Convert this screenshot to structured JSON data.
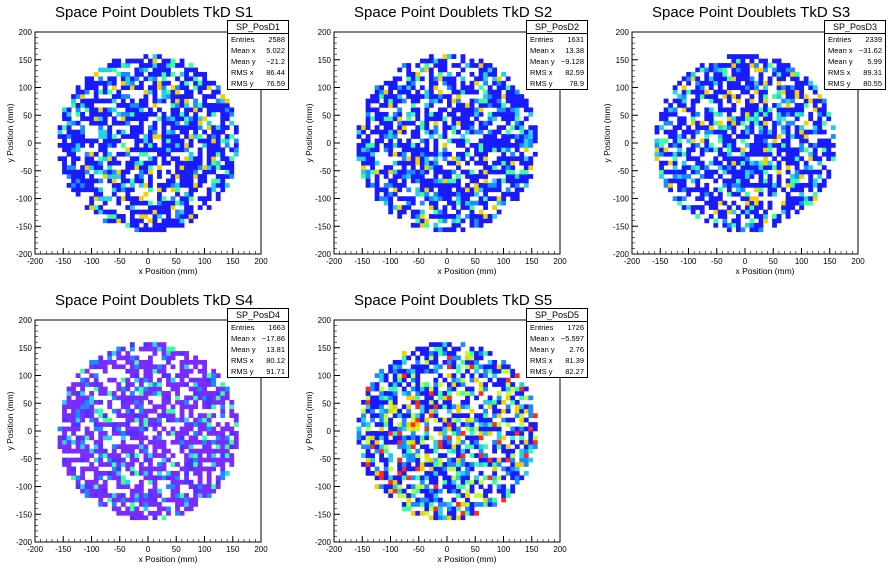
{
  "panels": [
    {
      "title": "Space Point Doublets TkD S1",
      "stats": {
        "name": "SP_PosD1",
        "entries": "2588",
        "mean_x": "5.022",
        "mean_y": "−21.2",
        "rms_x": "86.44",
        "rms_y": "76.59"
      },
      "scheme": "blue",
      "seed": 11
    },
    {
      "title": "Space Point Doublets TkD S2",
      "stats": {
        "name": "SP_PosD2",
        "entries": "1631",
        "mean_x": "13.38",
        "mean_y": "−9.128",
        "rms_x": "82.59",
        "rms_y": "78.9"
      },
      "scheme": "blue",
      "seed": 23
    },
    {
      "title": "Space Point Doublets TkD S3",
      "stats": {
        "name": "SP_PosD3",
        "entries": "2339",
        "mean_x": "−31.62",
        "mean_y": "5.99",
        "rms_x": "89.31",
        "rms_y": "80.55"
      },
      "scheme": "blue",
      "seed": 37
    },
    {
      "title": "Space Point Doublets TkD S4",
      "stats": {
        "name": "SP_PosD4",
        "entries": "1663",
        "mean_x": "−17.86",
        "mean_y": "13.81",
        "rms_x": "80.12",
        "rms_y": "91.71"
      },
      "scheme": "violet",
      "seed": 41
    },
    {
      "title": "Space Point Doublets TkD S5",
      "stats": {
        "name": "SP_PosD5",
        "entries": "1726",
        "mean_x": "−5.597",
        "mean_y": "2.76",
        "rms_x": "81.39",
        "rms_y": "82.27"
      },
      "scheme": "rainbow",
      "seed": 53
    }
  ],
  "labels": {
    "xlabel": "x Position (mm)",
    "ylabel": "y Position (mm)",
    "stat_entries": "Entries",
    "stat_mean_x": "Mean x",
    "stat_mean_y": "Mean y",
    "stat_rms_x": "RMS x",
    "stat_rms_y": "RMS y"
  },
  "chart_data": {
    "type": "heatmap",
    "xlim": [
      -200,
      200
    ],
    "ylim": [
      -200,
      200
    ],
    "xticks": [
      -200,
      -150,
      -100,
      -50,
      0,
      50,
      100,
      150,
      200
    ],
    "yticks": [
      -200,
      -150,
      -100,
      -50,
      0,
      50,
      100,
      150,
      200
    ],
    "circle_radius": 160,
    "palette": {
      "blue": [
        "#1a1aff",
        "#1a1aff",
        "#1a1aff",
        "#1a8cff",
        "#27cfe6",
        "#3aff9e",
        "#f5d000"
      ],
      "violet": [
        "#7a2cff",
        "#7a2cff",
        "#7a2cff",
        "#4d33ff",
        "#1a8cff",
        "#2ed0f0",
        "#3aff9e"
      ],
      "rainbow": [
        "#1a1aff",
        "#1a8cff",
        "#27cfe6",
        "#3aff9e",
        "#b9ff3a",
        "#f5d000",
        "#ff2b1a"
      ]
    }
  }
}
